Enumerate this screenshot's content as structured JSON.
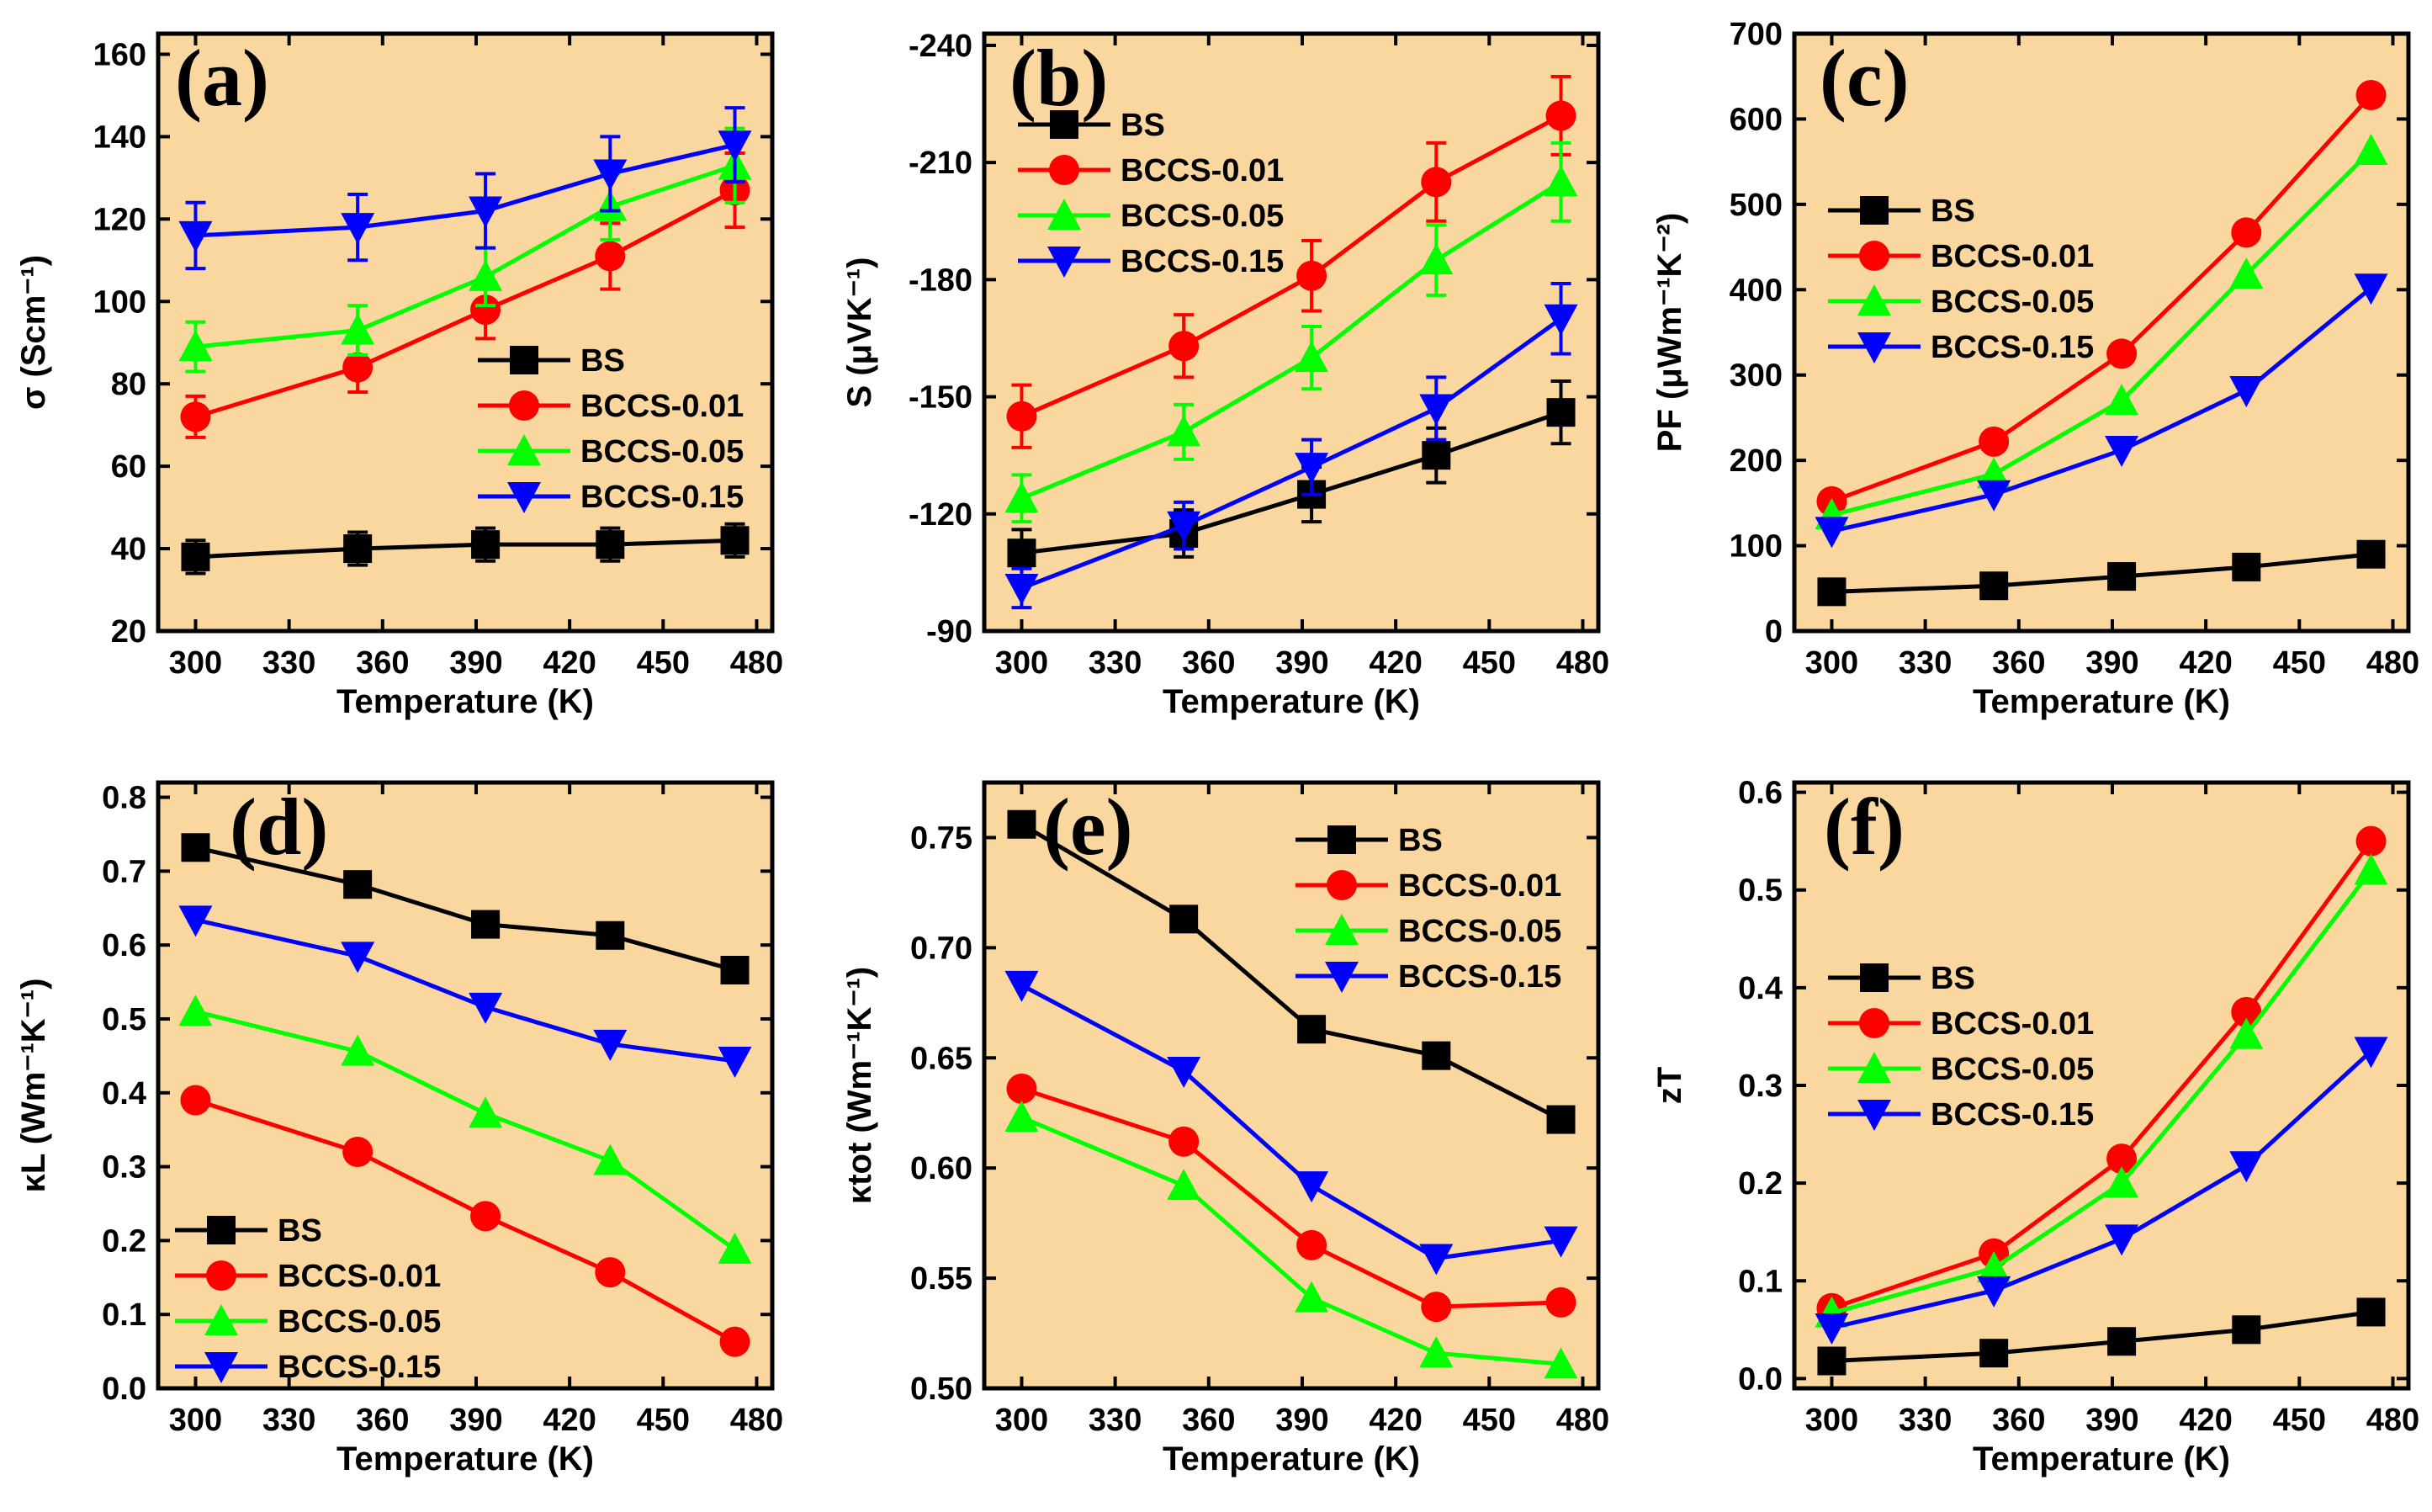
{
  "colors": {
    "background": "#f9d79e",
    "BS": "#000000",
    "BCCS-0.01": "#ff0000",
    "BCCS-0.05": "#00ff00",
    "BCCS-0.15": "#0000ff"
  },
  "chart_data": [
    {
      "id": "a",
      "panel_label": "(a)",
      "type": "line",
      "xlabel": "Temperature (K)",
      "ylabel": "σ (Scm⁻¹)",
      "xlim": [
        288,
        485
      ],
      "ylim": [
        20,
        165
      ],
      "xticks": [
        300,
        330,
        360,
        390,
        420,
        450,
        480
      ],
      "yticks": [
        20,
        40,
        60,
        80,
        100,
        120,
        140,
        160
      ],
      "ytick_labels": [
        "20",
        "40",
        "60",
        "80",
        "100",
        "120",
        "140",
        "160"
      ],
      "legend_position": "center-right",
      "legend_order": [
        "BS",
        "BCCS-0.01",
        "BCCS-0.05",
        "BCCS-0.15"
      ],
      "x": [
        300,
        352,
        393,
        433,
        473
      ],
      "series": [
        {
          "name": "BS",
          "marker": "square",
          "values": [
            38,
            40,
            41,
            41,
            42
          ],
          "errors": [
            4,
            4,
            4,
            4,
            4
          ]
        },
        {
          "name": "BCCS-0.01",
          "marker": "circle",
          "values": [
            72,
            84,
            98,
            111,
            127
          ],
          "errors": [
            5,
            6,
            7,
            8,
            9
          ]
        },
        {
          "name": "BCCS-0.05",
          "marker": "triangle-up",
          "values": [
            89,
            93,
            106,
            123,
            133
          ],
          "errors": [
            6,
            6,
            7,
            8,
            9
          ]
        },
        {
          "name": "BCCS-0.15",
          "marker": "triangle-down",
          "values": [
            116,
            118,
            122,
            131,
            138
          ],
          "errors": [
            8,
            8,
            9,
            9,
            9
          ]
        }
      ]
    },
    {
      "id": "b",
      "panel_label": "(b)",
      "type": "line",
      "xlabel": "Temperature (K)",
      "ylabel": "S (μVK⁻¹)",
      "xlim": [
        288,
        485
      ],
      "ylim": [
        -90,
        -243
      ],
      "xticks": [
        300,
        330,
        360,
        390,
        420,
        450,
        480
      ],
      "yticks": [
        -90,
        -120,
        -150,
        -180,
        -210,
        -240
      ],
      "ytick_labels": [
        "-90",
        "-120",
        "-150",
        "-180",
        "-210",
        "-240"
      ],
      "legend_position": "top-left",
      "legend_order": [
        "BS",
        "BCCS-0.01",
        "BCCS-0.05",
        "BCCS-0.15"
      ],
      "x": [
        300,
        352,
        393,
        433,
        473
      ],
      "series": [
        {
          "name": "BS",
          "marker": "square",
          "values": [
            -110,
            -115,
            -125,
            -135,
            -146
          ],
          "errors": [
            6,
            6,
            7,
            7,
            8
          ]
        },
        {
          "name": "BCCS-0.01",
          "marker": "circle",
          "values": [
            -145,
            -163,
            -181,
            -205,
            -222
          ],
          "errors": [
            8,
            8,
            9,
            10,
            10
          ]
        },
        {
          "name": "BCCS-0.05",
          "marker": "triangle-up",
          "values": [
            -124,
            -141,
            -160,
            -185,
            -205
          ],
          "errors": [
            6,
            7,
            8,
            9,
            10
          ]
        },
        {
          "name": "BCCS-0.15",
          "marker": "triangle-down",
          "values": [
            -101,
            -117,
            -132,
            -147,
            -170
          ],
          "errors": [
            5,
            6,
            7,
            8,
            9
          ]
        }
      ]
    },
    {
      "id": "c",
      "panel_label": "(c)",
      "type": "line",
      "xlabel": "Temperature (K)",
      "ylabel": "PF (μWm⁻¹K⁻²)",
      "xlim": [
        288,
        485
      ],
      "ylim": [
        0,
        700
      ],
      "xticks": [
        300,
        330,
        360,
        390,
        420,
        450,
        480
      ],
      "yticks": [
        0,
        100,
        200,
        300,
        400,
        500,
        600,
        700
      ],
      "ytick_labels": [
        "0",
        "100",
        "200",
        "300",
        "400",
        "500",
        "600",
        "700"
      ],
      "legend_position": "top-left",
      "legend_order": [
        "BS",
        "BCCS-0.01",
        "BCCS-0.05",
        "BCCS-0.15"
      ],
      "x": [
        300,
        352,
        393,
        433,
        473
      ],
      "series": [
        {
          "name": "BS",
          "marker": "square",
          "values": [
            46,
            53,
            64,
            75,
            90
          ]
        },
        {
          "name": "BCCS-0.01",
          "marker": "circle",
          "values": [
            152,
            222,
            325,
            467,
            628
          ]
        },
        {
          "name": "BCCS-0.05",
          "marker": "triangle-up",
          "values": [
            136,
            184,
            270,
            418,
            563
          ]
        },
        {
          "name": "BCCS-0.15",
          "marker": "triangle-down",
          "values": [
            117,
            160,
            212,
            282,
            402
          ]
        }
      ]
    },
    {
      "id": "d",
      "panel_label": "(d)",
      "type": "line",
      "xlabel": "Temperature (K)",
      "ylabel": "κL (Wm⁻¹K⁻¹)",
      "xlim": [
        288,
        485
      ],
      "ylim": [
        0,
        0.82
      ],
      "xticks": [
        300,
        330,
        360,
        390,
        420,
        450,
        480
      ],
      "yticks": [
        0,
        0.1,
        0.2,
        0.3,
        0.4,
        0.5,
        0.6,
        0.7,
        0.8
      ],
      "ytick_labels": [
        "0.0",
        "0.1",
        "0.2",
        "0.3",
        "0.4",
        "0.5",
        "0.6",
        "0.7",
        "0.8"
      ],
      "legend_position": "bottom-left",
      "legend_order": [
        "BS",
        "BCCS-0.01",
        "BCCS-0.05",
        "BCCS-0.15"
      ],
      "x": [
        300,
        352,
        393,
        433,
        473
      ],
      "series": [
        {
          "name": "BS",
          "marker": "square",
          "values": [
            0.732,
            0.682,
            0.628,
            0.613,
            0.566
          ]
        },
        {
          "name": "BCCS-0.01",
          "marker": "circle",
          "values": [
            0.39,
            0.32,
            0.233,
            0.157,
            0.063
          ]
        },
        {
          "name": "BCCS-0.05",
          "marker": "triangle-up",
          "values": [
            0.51,
            0.456,
            0.372,
            0.308,
            0.188
          ]
        },
        {
          "name": "BCCS-0.15",
          "marker": "triangle-down",
          "values": [
            0.634,
            0.585,
            0.516,
            0.466,
            0.443
          ]
        }
      ]
    },
    {
      "id": "e",
      "panel_label": "(e)",
      "type": "line",
      "xlabel": "Temperature (K)",
      "ylabel": "κtot (Wm⁻¹K⁻¹)",
      "xlim": [
        288,
        485
      ],
      "ylim": [
        0.5,
        0.775
      ],
      "xticks": [
        300,
        330,
        360,
        390,
        420,
        450,
        480
      ],
      "yticks": [
        0.5,
        0.55,
        0.6,
        0.65,
        0.7,
        0.75
      ],
      "ytick_labels": [
        "0.50",
        "0.55",
        "0.60",
        "0.65",
        "0.70",
        "0.75"
      ],
      "legend_position": "top-right",
      "legend_order": [
        "BS",
        "BCCS-0.01",
        "BCCS-0.05",
        "BCCS-0.15"
      ],
      "x": [
        300,
        352,
        393,
        433,
        473
      ],
      "series": [
        {
          "name": "BS",
          "marker": "square",
          "values": [
            0.756,
            0.713,
            0.663,
            0.651,
            0.622
          ]
        },
        {
          "name": "BCCS-0.01",
          "marker": "circle",
          "values": [
            0.636,
            0.612,
            0.565,
            0.537,
            0.539
          ]
        },
        {
          "name": "BCCS-0.05",
          "marker": "triangle-up",
          "values": [
            0.623,
            0.592,
            0.541,
            0.516,
            0.511
          ]
        },
        {
          "name": "BCCS-0.15",
          "marker": "triangle-down",
          "values": [
            0.683,
            0.644,
            0.592,
            0.559,
            0.567
          ]
        }
      ]
    },
    {
      "id": "f",
      "panel_label": "(f)",
      "type": "line",
      "xlabel": "Temperature (K)",
      "ylabel": "zT",
      "xlim": [
        288,
        485
      ],
      "ylim": [
        -0.01,
        0.61
      ],
      "xticks": [
        300,
        330,
        360,
        390,
        420,
        450,
        480
      ],
      "yticks": [
        0,
        0.1,
        0.2,
        0.3,
        0.4,
        0.5,
        0.6
      ],
      "ytick_labels": [
        "0.0",
        "0.1",
        "0.2",
        "0.3",
        "0.4",
        "0.5",
        "0.6"
      ],
      "legend_position": "center-left",
      "legend_order": [
        "BS",
        "BCCS-0.01",
        "BCCS-0.05",
        "BCCS-0.15"
      ],
      "x": [
        300,
        352,
        393,
        433,
        473
      ],
      "series": [
        {
          "name": "BS",
          "marker": "square",
          "values": [
            0.018,
            0.026,
            0.038,
            0.05,
            0.068
          ]
        },
        {
          "name": "BCCS-0.01",
          "marker": "circle",
          "values": [
            0.072,
            0.128,
            0.225,
            0.375,
            0.55
          ]
        },
        {
          "name": "BCCS-0.05",
          "marker": "triangle-up",
          "values": [
            0.067,
            0.113,
            0.2,
            0.352,
            0.52
          ]
        },
        {
          "name": "BCCS-0.15",
          "marker": "triangle-down",
          "values": [
            0.052,
            0.09,
            0.143,
            0.218,
            0.335
          ]
        }
      ]
    }
  ]
}
